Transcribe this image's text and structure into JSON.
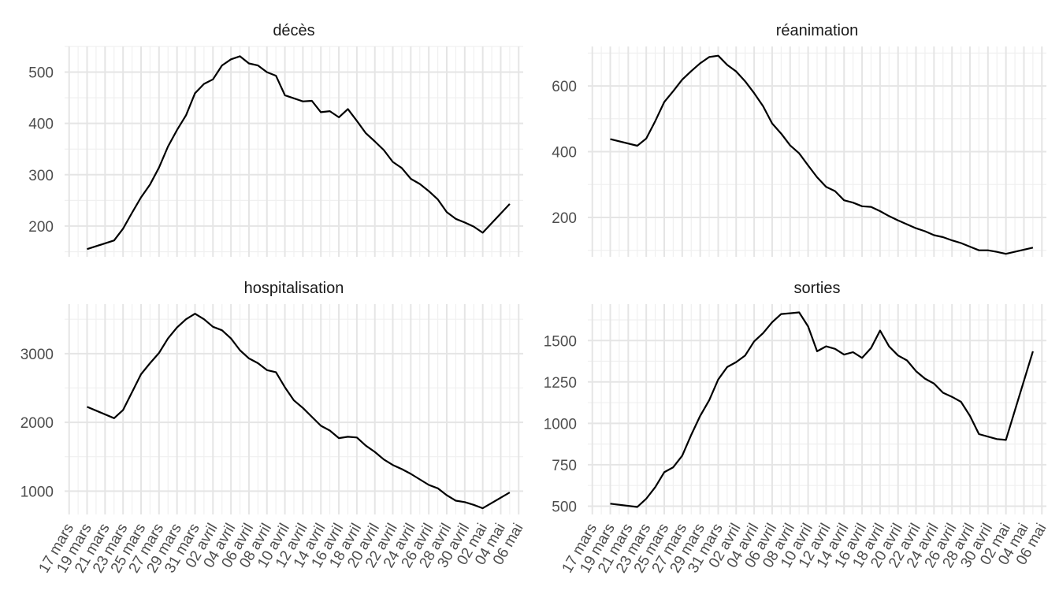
{
  "chart_data": {
    "type": "line",
    "layout": "facet-2x2",
    "grid": true,
    "legend": "none",
    "x_tick_labels": [
      "17 mars",
      "19 mars",
      "21 mars",
      "23 mars",
      "25 mars",
      "27 mars",
      "29 mars",
      "31 mars",
      "02 avril",
      "04 avril",
      "06 avril",
      "08 avril",
      "10 avril",
      "12 avril",
      "14 avril",
      "16 avril",
      "18 avril",
      "20 avril",
      "22 avril",
      "24 avril",
      "26 avril",
      "28 avril",
      "30 avril",
      "02 mai",
      "04 mai",
      "06 mai"
    ],
    "x_start_date": "2020-03-17",
    "x_range_days": [
      -0.5,
      50.5
    ],
    "panels": [
      {
        "title": "décès",
        "ylim": [
          140,
          550
        ],
        "yticks": [
          200,
          300,
          400,
          500
        ],
        "x": [
          "2020-03-19",
          "2020-03-22",
          "2020-03-23",
          "2020-03-24",
          "2020-03-25",
          "2020-03-26",
          "2020-03-27",
          "2020-03-28",
          "2020-03-29",
          "2020-03-30",
          "2020-03-31",
          "2020-04-01",
          "2020-04-02",
          "2020-04-03",
          "2020-04-04",
          "2020-04-05",
          "2020-04-06",
          "2020-04-07",
          "2020-04-08",
          "2020-04-09",
          "2020-04-10",
          "2020-04-11",
          "2020-04-12",
          "2020-04-13",
          "2020-04-14",
          "2020-04-15",
          "2020-04-16",
          "2020-04-17",
          "2020-04-18",
          "2020-04-19",
          "2020-04-20",
          "2020-04-21",
          "2020-04-22",
          "2020-04-23",
          "2020-04-24",
          "2020-04-25",
          "2020-04-26",
          "2020-04-27",
          "2020-04-28",
          "2020-04-29",
          "2020-04-30",
          "2020-05-01",
          "2020-05-02",
          "2020-05-05"
        ],
        "values": [
          155,
          172,
          195,
          226,
          256,
          281,
          314,
          355,
          387,
          416,
          459,
          477,
          486,
          513,
          525,
          531,
          517,
          513,
          500,
          493,
          455,
          449,
          443,
          444,
          422,
          424,
          412,
          428,
          405,
          381,
          365,
          348,
          325,
          313,
          292,
          282,
          268,
          252,
          227,
          214,
          207,
          199,
          187,
          243
        ]
      },
      {
        "title": "réanimation",
        "ylim": [
          80,
          720
        ],
        "yticks": [
          200,
          400,
          600
        ],
        "x": [
          "2020-03-19",
          "2020-03-22",
          "2020-03-23",
          "2020-03-24",
          "2020-03-25",
          "2020-03-26",
          "2020-03-27",
          "2020-03-28",
          "2020-03-29",
          "2020-03-30",
          "2020-03-31",
          "2020-04-01",
          "2020-04-02",
          "2020-04-03",
          "2020-04-04",
          "2020-04-05",
          "2020-04-06",
          "2020-04-07",
          "2020-04-08",
          "2020-04-09",
          "2020-04-10",
          "2020-04-11",
          "2020-04-12",
          "2020-04-13",
          "2020-04-14",
          "2020-04-15",
          "2020-04-16",
          "2020-04-17",
          "2020-04-18",
          "2020-04-19",
          "2020-04-20",
          "2020-04-21",
          "2020-04-22",
          "2020-04-23",
          "2020-04-24",
          "2020-04-25",
          "2020-04-26",
          "2020-04-27",
          "2020-04-28",
          "2020-04-29",
          "2020-04-30",
          "2020-05-01",
          "2020-05-02",
          "2020-05-05"
        ],
        "values": [
          438,
          418,
          440,
          493,
          551,
          584,
          619,
          645,
          669,
          688,
          692,
          664,
          644,
          614,
          578,
          538,
          486,
          455,
          419,
          395,
          358,
          322,
          293,
          280,
          252,
          245,
          234,
          232,
          219,
          204,
          191,
          179,
          167,
          158,
          146,
          140,
          130,
          122,
          111,
          100,
          100,
          95,
          89,
          108
        ]
      },
      {
        "title": "hospitalisation",
        "ylim": [
          660,
          3720
        ],
        "yticks": [
          1000,
          2000,
          3000
        ],
        "x": [
          "2020-03-19",
          "2020-03-22",
          "2020-03-23",
          "2020-03-24",
          "2020-03-25",
          "2020-03-26",
          "2020-03-27",
          "2020-03-28",
          "2020-03-29",
          "2020-03-30",
          "2020-03-31",
          "2020-04-01",
          "2020-04-02",
          "2020-04-03",
          "2020-04-04",
          "2020-04-05",
          "2020-04-06",
          "2020-04-07",
          "2020-04-08",
          "2020-04-09",
          "2020-04-10",
          "2020-04-11",
          "2020-04-12",
          "2020-04-13",
          "2020-04-14",
          "2020-04-15",
          "2020-04-16",
          "2020-04-17",
          "2020-04-18",
          "2020-04-19",
          "2020-04-20",
          "2020-04-21",
          "2020-04-22",
          "2020-04-23",
          "2020-04-24",
          "2020-04-25",
          "2020-04-26",
          "2020-04-27",
          "2020-04-28",
          "2020-04-29",
          "2020-04-30",
          "2020-05-01",
          "2020-05-02",
          "2020-05-05"
        ],
        "values": [
          2225,
          2060,
          2180,
          2440,
          2700,
          2860,
          3010,
          3220,
          3380,
          3500,
          3580,
          3500,
          3390,
          3340,
          3220,
          3050,
          2930,
          2860,
          2760,
          2730,
          2510,
          2320,
          2210,
          2080,
          1950,
          1880,
          1770,
          1790,
          1780,
          1660,
          1570,
          1460,
          1380,
          1320,
          1250,
          1170,
          1090,
          1040,
          940,
          860,
          840,
          800,
          750,
          980
        ]
      },
      {
        "title": "sorties",
        "ylim": [
          450,
          1720
        ],
        "yticks": [
          500,
          750,
          1000,
          1250,
          1500
        ],
        "x": [
          "2020-03-19",
          "2020-03-22",
          "2020-03-23",
          "2020-03-24",
          "2020-03-25",
          "2020-03-26",
          "2020-03-27",
          "2020-03-28",
          "2020-03-29",
          "2020-03-30",
          "2020-03-31",
          "2020-04-01",
          "2020-04-02",
          "2020-04-03",
          "2020-04-04",
          "2020-04-05",
          "2020-04-06",
          "2020-04-07",
          "2020-04-08",
          "2020-04-09",
          "2020-04-10",
          "2020-04-11",
          "2020-04-12",
          "2020-04-13",
          "2020-04-14",
          "2020-04-15",
          "2020-04-16",
          "2020-04-17",
          "2020-04-18",
          "2020-04-19",
          "2020-04-20",
          "2020-04-21",
          "2020-04-22",
          "2020-04-23",
          "2020-04-24",
          "2020-04-25",
          "2020-04-26",
          "2020-04-27",
          "2020-04-28",
          "2020-04-29",
          "2020-04-30",
          "2020-05-01",
          "2020-05-02",
          "2020-05-05"
        ],
        "values": [
          515,
          495,
          545,
          615,
          705,
          735,
          805,
          930,
          1045,
          1140,
          1265,
          1340,
          1370,
          1410,
          1495,
          1545,
          1610,
          1660,
          1665,
          1670,
          1585,
          1435,
          1465,
          1450,
          1415,
          1430,
          1395,
          1455,
          1560,
          1465,
          1410,
          1380,
          1315,
          1270,
          1240,
          1185,
          1160,
          1130,
          1045,
          935,
          920,
          905,
          900,
          1435
        ]
      }
    ]
  }
}
